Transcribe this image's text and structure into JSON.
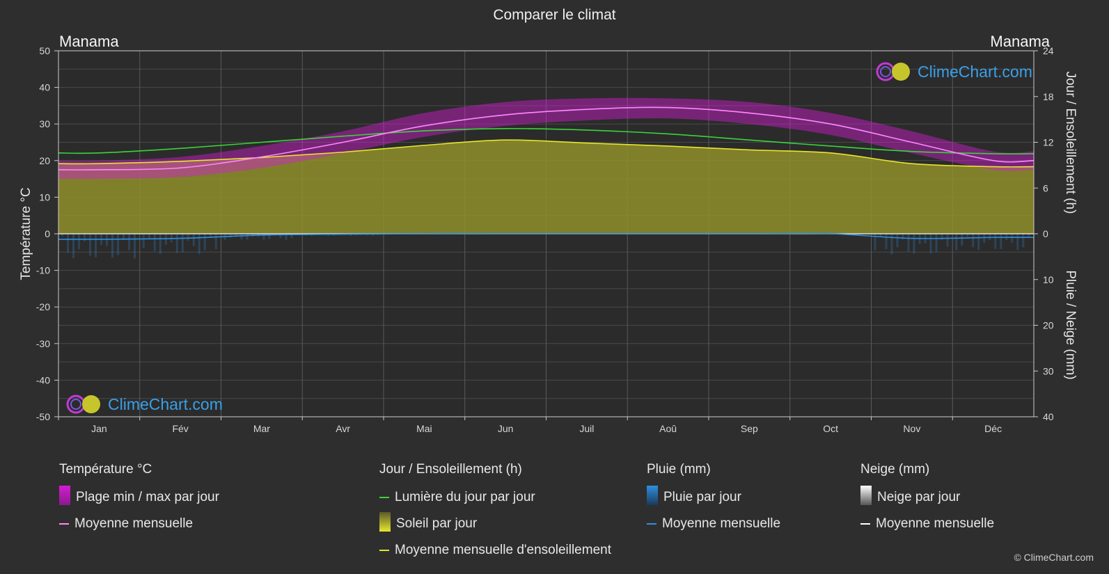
{
  "title": "Comparer le climat",
  "location_left": "Manama",
  "location_right": "Manama",
  "logo_text": "ClimeChart.com",
  "copyright": "© ClimeChart.com",
  "colors": {
    "daylight": "#3ad43a",
    "sunshine_fill": "#8f8f2a",
    "sunshine_line": "#e6e62e",
    "temp_range": "#d41cd4",
    "temp_line": "#ff88ff",
    "rain": "#2f8fe0",
    "snow": "#ffffff"
  },
  "legend": {
    "temperature": {
      "header": "Température °C",
      "items": [
        "Plage min / max par jour",
        "Moyenne mensuelle"
      ]
    },
    "sun": {
      "header": "Jour / Ensoleillement (h)",
      "items": [
        "Lumière du jour par jour",
        "Soleil par jour",
        "Moyenne mensuelle d'ensoleillement"
      ]
    },
    "rain": {
      "header": "Pluie (mm)",
      "items": [
        "Pluie par jour",
        "Moyenne mensuelle"
      ]
    },
    "snow": {
      "header": "Neige (mm)",
      "items": [
        "Neige par jour",
        "Moyenne mensuelle"
      ]
    }
  },
  "chart_data": {
    "type": "line",
    "categories": [
      "Jan",
      "Fév",
      "Mar",
      "Avr",
      "Mai",
      "Jun",
      "Juil",
      "Aoû",
      "Sep",
      "Oct",
      "Nov",
      "Déc"
    ],
    "y_left_label": "Température °C",
    "y_left_ticks": [
      "50",
      "40",
      "30",
      "20",
      "10",
      "0",
      "-10",
      "-20",
      "-30",
      "-40",
      "-50"
    ],
    "y_left_range": [
      -50,
      50
    ],
    "y_right_top_label": "Jour / Ensoleillement (h)",
    "y_right_top_ticks": [
      "24",
      "18",
      "12",
      "6",
      "0"
    ],
    "y_right_top_range": [
      0,
      24
    ],
    "y_right_bottom_label": "Pluie / Neige (mm)",
    "y_right_bottom_ticks": [
      "10",
      "20",
      "30",
      "40"
    ],
    "y_right_bottom_range": [
      0,
      40
    ],
    "series": [
      {
        "name": "Moyenne mensuelle",
        "unit": "°C",
        "values": [
          17.5,
          18.0,
          21.0,
          25.0,
          29.5,
          32.5,
          34.0,
          34.5,
          33.0,
          30.0,
          25.0,
          20.0
        ]
      },
      {
        "name": "Plage min / max par jour",
        "unit": "°C",
        "min": [
          15,
          15.5,
          18,
          22,
          26.5,
          29.5,
          31,
          31.5,
          30,
          27,
          22,
          17.5
        ],
        "max": [
          20,
          21,
          24,
          28,
          33,
          36,
          37,
          37,
          36,
          33,
          28,
          22.5
        ]
      },
      {
        "name": "Lumière du jour par jour",
        "unit": "h",
        "values": [
          10.6,
          11.2,
          12.0,
          12.8,
          13.5,
          13.8,
          13.6,
          13.1,
          12.3,
          11.5,
          10.8,
          10.5
        ]
      },
      {
        "name": "Moyenne mensuelle d'ensoleillement",
        "unit": "h",
        "values": [
          9.2,
          9.5,
          10.0,
          10.7,
          11.6,
          12.3,
          11.9,
          11.5,
          11.0,
          10.6,
          9.2,
          8.8
        ]
      },
      {
        "name": "Moyenne mensuelle",
        "unit": "mm",
        "values": [
          1.2,
          1.0,
          0.3,
          0.1,
          0.0,
          0.0,
          0.0,
          0.0,
          0.0,
          0.0,
          1.0,
          0.8
        ]
      }
    ],
    "grid": true
  }
}
